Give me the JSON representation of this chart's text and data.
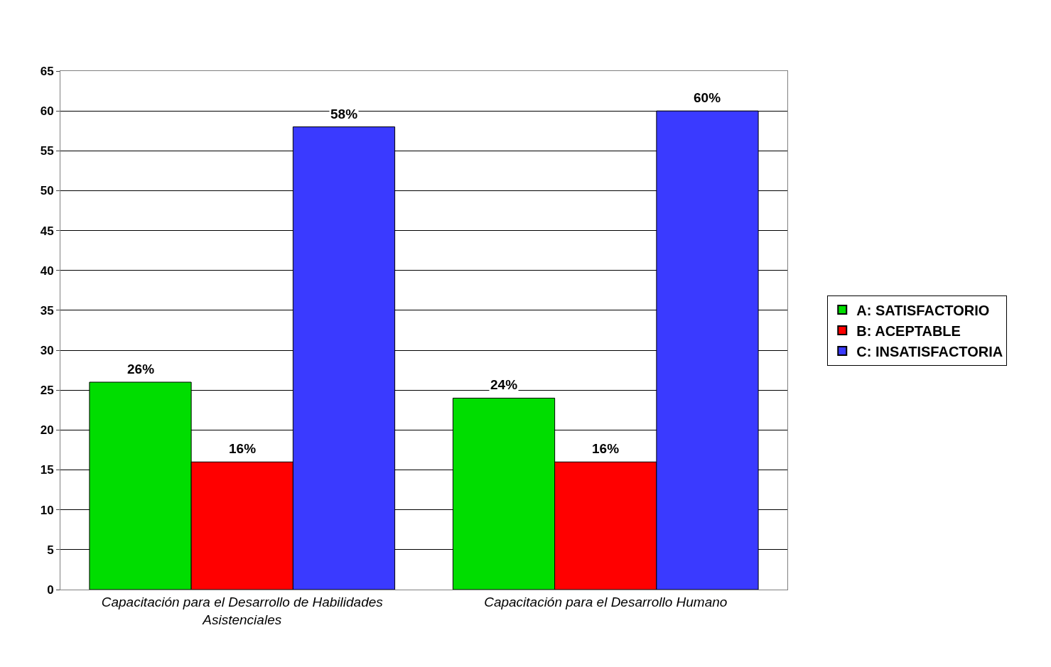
{
  "chart_data": {
    "type": "bar",
    "categories": [
      "Capacitación para el Desarrollo de Habilidades Asistenciales",
      "Capacitación para el Desarrollo Humano"
    ],
    "series": [
      {
        "name": "A: SATISFACTORIO",
        "color": "#00dd00",
        "values": [
          26,
          24
        ],
        "value_labels": [
          "26%",
          "24%"
        ]
      },
      {
        "name": "B: ACEPTABLE",
        "color": "#ff0000",
        "values": [
          16,
          16
        ],
        "value_labels": [
          "16%",
          "16%"
        ]
      },
      {
        "name": "C: INSATISFACTORIA",
        "color": "#3a3aff",
        "values": [
          58,
          60
        ],
        "value_labels": [
          "58%",
          "60%"
        ]
      }
    ],
    "ylim": [
      0,
      65
    ],
    "yticks": [
      0,
      5,
      10,
      15,
      20,
      25,
      30,
      35,
      40,
      45,
      50,
      55,
      60,
      65
    ],
    "grid": "y",
    "legend": "right"
  }
}
